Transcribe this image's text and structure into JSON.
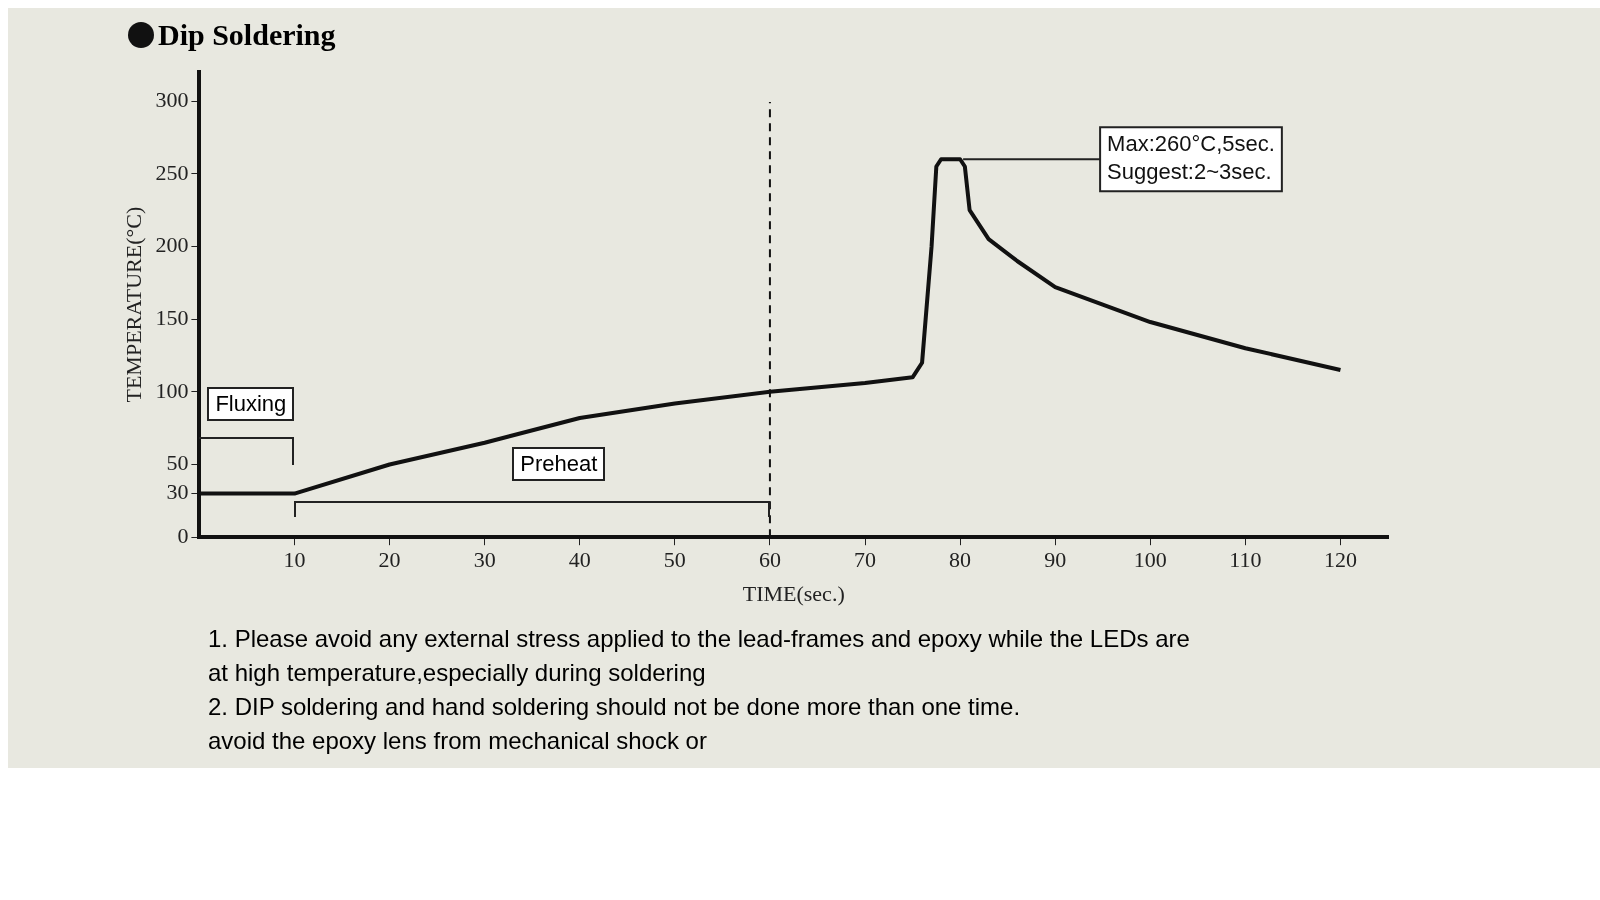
{
  "chart_data": {
    "type": "line",
    "title": "Dip Soldering",
    "xlabel": "TIME(sec.)",
    "ylabel": "TEMPERATURE(°C)",
    "x": [
      0,
      10,
      20,
      30,
      40,
      50,
      60,
      70,
      75,
      76,
      77,
      77.5,
      78,
      80,
      80.5,
      81,
      83,
      86,
      90,
      95,
      100,
      110,
      120
    ],
    "series": [
      {
        "color": "#111111",
        "values": [
          30,
          30,
          50,
          65,
          82,
          92,
          100,
          106,
          110,
          120,
          200,
          255,
          260,
          260,
          255,
          225,
          205,
          190,
          172,
          160,
          148,
          130,
          115
        ]
      }
    ],
    "xlim": [
      0,
      125
    ],
    "xticks": [
      10,
      20,
      30,
      40,
      50,
      60,
      70,
      80,
      90,
      100,
      110,
      120
    ],
    "ylim": [
      0,
      320
    ],
    "yticks": [
      0,
      30,
      50,
      100,
      150,
      200,
      250,
      300
    ],
    "grid": false,
    "legend": false,
    "marker": "none",
    "line_style": "solid",
    "ref_lines": [
      {
        "axis": "x",
        "value": 60,
        "line_style": "dashed",
        "color": "#111111"
      }
    ],
    "annotations": [
      "Fluxing",
      "Preheat",
      {
        "text": "Max:260°C,5sec.\nSuggest:2~3sec.",
        "x": 80,
        "y": 260
      },
      "1. Please avoid any external stress applied to the lead-frames and epoxy while the LEDs are at high temperature,especially during soldering",
      "2. DIP soldering and hand soldering should not be done more than one time.",
      "avoid the epoxy lens from mechanical shock or"
    ]
  }
}
